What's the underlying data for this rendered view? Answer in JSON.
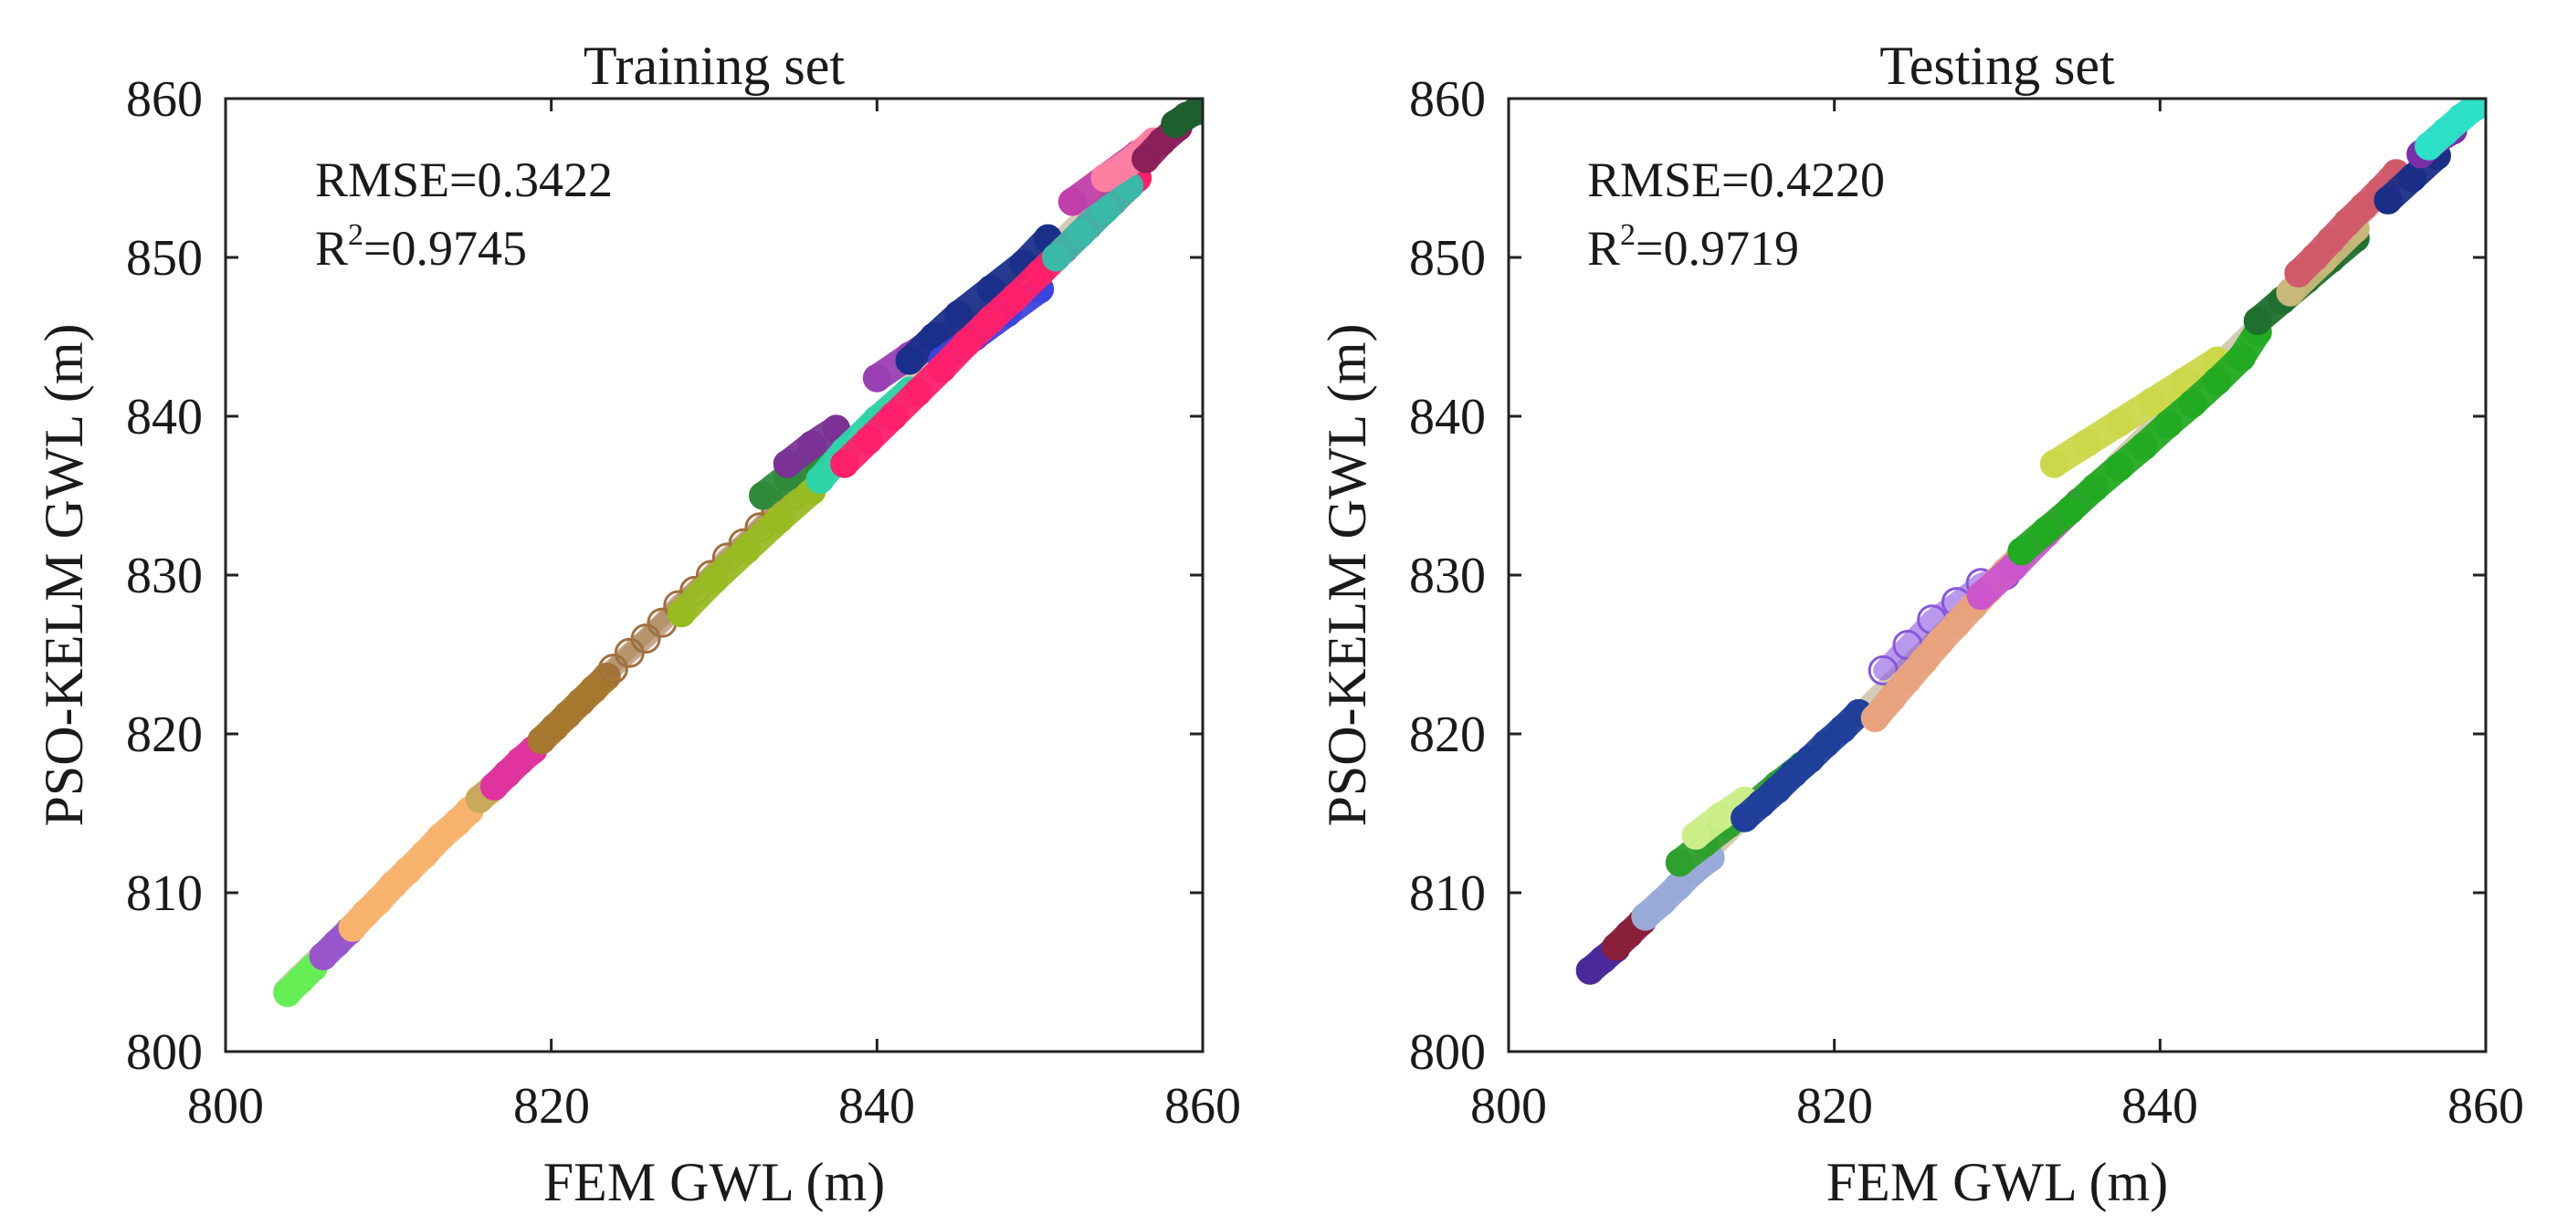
{
  "chart_data": [
    {
      "type": "scatter",
      "title": "Training set",
      "xlabel": "FEM GWL (m)",
      "ylabel": "PSO-KELM GWL (m)",
      "xlim": [
        800,
        860
      ],
      "ylim": [
        800,
        860
      ],
      "xticks": [
        "800",
        "820",
        "840",
        "860"
      ],
      "yticks": [
        "800",
        "810",
        "820",
        "830",
        "840",
        "850",
        "860"
      ],
      "metrics": {
        "rmse": "RMSE=0.3422",
        "r_base": "R",
        "r_sup": "2",
        "r_value": "=0.9745"
      },
      "series": [
        {
          "name": "g1",
          "color": "#66ee55",
          "x": [
            803.8,
            804.6,
            805.4
          ],
          "y": [
            803.7,
            804.5,
            805.3
          ],
          "filled": true
        },
        {
          "name": "g2",
          "color": "#9955cc",
          "x": [
            806.0,
            806.8,
            807.6
          ],
          "y": [
            806.0,
            806.8,
            807.6
          ],
          "filled": true
        },
        {
          "name": "g3",
          "color": "#f7b36b",
          "x": [
            807.8,
            808.6,
            809.4,
            810.3,
            811.2,
            812.2,
            813.2,
            814.2,
            815.0
          ],
          "y": [
            807.8,
            808.7,
            809.5,
            810.5,
            811.4,
            812.4,
            813.5,
            814.4,
            815.2
          ],
          "filled": true
        },
        {
          "name": "g4",
          "color": "#c9a95e",
          "x": [
            815.6,
            816.4
          ],
          "y": [
            815.9,
            816.6
          ],
          "filled": true
        },
        {
          "name": "g5",
          "color": "#e0339e",
          "x": [
            816.5,
            817.3,
            818.1,
            818.9
          ],
          "y": [
            816.7,
            817.5,
            818.3,
            819.0
          ],
          "filled": true
        },
        {
          "name": "g6",
          "color": "#a6782f",
          "x": [
            819.4,
            820.2,
            821.0,
            821.8,
            822.6,
            823.4
          ],
          "y": [
            819.6,
            820.4,
            821.2,
            822.0,
            822.8,
            823.6
          ],
          "filled": true
        },
        {
          "name": "g7",
          "color": "#a07040",
          "x": [
            823.8,
            824.8,
            825.8,
            826.8,
            827.8,
            828.8,
            829.8,
            830.8,
            831.8,
            832.8,
            833.8,
            834.8,
            835.8,
            836.8
          ],
          "y": [
            824.1,
            825.1,
            826.0,
            827.0,
            828.1,
            829.0,
            830.0,
            831.1,
            832.0,
            833.0,
            834.0,
            835.0,
            836.0,
            836.9
          ],
          "filled": false
        },
        {
          "name": "g8",
          "color": "#99bb22",
          "x": [
            828.0,
            830.0,
            832.0,
            834.0,
            836.0
          ],
          "y": [
            827.6,
            829.7,
            831.6,
            833.5,
            835.3
          ],
          "filled": true
        },
        {
          "name": "g9",
          "color": "#2e8b3a",
          "x": [
            833.0,
            834.5,
            836.0
          ],
          "y": [
            835.0,
            836.2,
            837.5
          ],
          "filled": true
        },
        {
          "name": "g10",
          "color": "#7b3294",
          "x": [
            834.5,
            836.0,
            837.5
          ],
          "y": [
            837.0,
            838.2,
            839.2
          ],
          "filled": true
        },
        {
          "name": "g11",
          "color": "#2dd4a8",
          "x": [
            836.5,
            838.0,
            840.0,
            842.0
          ],
          "y": [
            836.0,
            837.8,
            839.8,
            841.6
          ],
          "filled": true
        },
        {
          "name": "g12",
          "color": "#9b3fb5",
          "x": [
            840.0,
            842.0,
            844.0
          ],
          "y": [
            842.4,
            843.8,
            845.1
          ],
          "filled": true
        },
        {
          "name": "g13",
          "color": "#1a2f8a",
          "x": [
            842.0,
            843.5,
            845.0,
            847.0,
            849.0,
            850.5
          ],
          "y": [
            843.5,
            845.0,
            846.4,
            848.0,
            849.6,
            851.2
          ],
          "filled": true
        },
        {
          "name": "g14",
          "color": "#3b44dd",
          "x": [
            844.0,
            846.0,
            848.0,
            850.0
          ],
          "y": [
            843.5,
            845.0,
            846.5,
            848.0
          ],
          "filled": true
        },
        {
          "name": "g15",
          "color": "#ff1f6b",
          "x": [
            838.0,
            839.5,
            841.0,
            842.5,
            844.0,
            845.5,
            847.0,
            848.5,
            850.0,
            851.5,
            853.0,
            854.5,
            856.0
          ],
          "y": [
            837.0,
            838.5,
            840.0,
            841.5,
            843.0,
            844.6,
            846.1,
            847.5,
            849.0,
            850.5,
            852.0,
            853.5,
            855.0
          ],
          "filled": true
        },
        {
          "name": "g16",
          "color": "#3ab8a8",
          "x": [
            851.0,
            852.5,
            854.0,
            855.5
          ],
          "y": [
            850.0,
            851.5,
            853.0,
            854.5
          ],
          "filled": true
        },
        {
          "name": "g17",
          "color": "#c03fa8",
          "x": [
            852.0,
            854.0,
            856.0
          ],
          "y": [
            853.5,
            855.0,
            856.5
          ],
          "filled": true
        },
        {
          "name": "g18",
          "color": "#ff7fa3",
          "x": [
            854.0,
            855.5,
            857.0
          ],
          "y": [
            855.0,
            856.0,
            857.3
          ],
          "filled": true
        },
        {
          "name": "g19",
          "color": "#8a1f5a",
          "x": [
            856.5,
            857.5,
            858.5
          ],
          "y": [
            856.2,
            857.3,
            858.2
          ],
          "filled": true
        },
        {
          "name": "g20",
          "color": "#1f5e2e",
          "x": [
            858.3,
            859.0,
            859.6
          ],
          "y": [
            858.4,
            858.9,
            859.2
          ],
          "filled": true
        }
      ]
    },
    {
      "type": "scatter",
      "title": "Testing set",
      "xlabel": "FEM GWL (m)",
      "ylabel": "PSO-KELM GWL (m)",
      "xlim": [
        800,
        860
      ],
      "ylim": [
        800,
        860
      ],
      "xticks": [
        "800",
        "820",
        "840",
        "860"
      ],
      "yticks": [
        "800",
        "810",
        "820",
        "830",
        "840",
        "850",
        "860"
      ],
      "metrics": {
        "rmse": "RMSE=0.4220",
        "r_base": "R",
        "r_sup": "2",
        "r_value": "=0.9719"
      },
      "series": [
        {
          "name": "t1",
          "color": "#4a2a9a",
          "x": [
            805.0,
            805.8,
            806.6
          ],
          "y": [
            805.1,
            805.8,
            806.5
          ],
          "filled": true
        },
        {
          "name": "t2",
          "color": "#8a1f3a",
          "x": [
            806.6,
            807.4,
            808.2
          ],
          "y": [
            806.6,
            807.4,
            808.2
          ],
          "filled": true
        },
        {
          "name": "t3",
          "color": "#9aaad8",
          "x": [
            808.4,
            809.4,
            810.4,
            811.4,
            812.4
          ],
          "y": [
            808.5,
            809.4,
            810.4,
            811.4,
            812.2
          ],
          "filled": true
        },
        {
          "name": "t4",
          "color": "#2ea02e",
          "x": [
            810.5,
            812.0,
            813.5,
            815.0,
            816.5,
            818.0
          ],
          "y": [
            811.9,
            813.1,
            814.3,
            815.5,
            816.8,
            818.0
          ],
          "filled": true
        },
        {
          "name": "t5",
          "color": "#ccee88",
          "x": [
            811.5,
            813.0,
            814.5
          ],
          "y": [
            813.6,
            814.8,
            815.8
          ],
          "filled": true
        },
        {
          "name": "t6",
          "color": "#1f3f9a",
          "x": [
            814.5,
            815.5,
            816.5,
            817.5,
            818.5,
            819.5,
            820.5,
            821.5
          ],
          "y": [
            814.7,
            815.6,
            816.5,
            817.5,
            818.4,
            819.4,
            820.3,
            821.3
          ],
          "filled": true
        },
        {
          "name": "t7",
          "color": "#8855dd",
          "x": [
            823.0,
            824.5,
            826.0,
            827.5,
            829.0,
            830.5
          ],
          "y": [
            824.0,
            825.6,
            827.2,
            828.3,
            829.5,
            830.0
          ],
          "filled": false
        },
        {
          "name": "t8",
          "color": "#e8a37e",
          "x": [
            822.5,
            823.5,
            824.5,
            825.5,
            826.5,
            827.5,
            828.5,
            829.5,
            830.5,
            831.5
          ],
          "y": [
            821.0,
            822.2,
            823.4,
            824.6,
            825.8,
            826.9,
            828.0,
            829.1,
            830.2,
            831.2
          ],
          "filled": true
        },
        {
          "name": "t9",
          "color": "#cc55cc",
          "x": [
            829.0,
            831.0,
            833.0,
            835.0
          ],
          "y": [
            828.7,
            830.5,
            832.6,
            834.6
          ],
          "filled": true
        },
        {
          "name": "t10",
          "color": "#ccd84a",
          "x": [
            833.5,
            835.5,
            837.5,
            839.5,
            841.5,
            843.5
          ],
          "y": [
            837.0,
            838.3,
            839.6,
            840.9,
            842.2,
            843.5
          ],
          "filled": true
        },
        {
          "name": "t11",
          "color": "#22aa22",
          "x": [
            831.5,
            833.0,
            834.5,
            836.0,
            837.5,
            839.0,
            840.5,
            842.0,
            843.5,
            845.0,
            846.0
          ],
          "y": [
            831.5,
            832.8,
            834.1,
            835.5,
            836.8,
            838.1,
            839.5,
            840.8,
            842.2,
            843.7,
            845.3
          ],
          "filled": true
        },
        {
          "name": "t12",
          "color": "#1f6f2f",
          "x": [
            846.0,
            847.5,
            849.0,
            850.5,
            852.0
          ],
          "y": [
            846.0,
            847.3,
            848.6,
            849.9,
            851.2
          ],
          "filled": true
        },
        {
          "name": "t13",
          "color": "#c8b87a",
          "x": [
            848.0,
            850.0,
            852.0
          ],
          "y": [
            847.8,
            849.8,
            851.8
          ],
          "filled": true
        },
        {
          "name": "t14",
          "color": "#d05a6a",
          "x": [
            848.5,
            849.5,
            850.5,
            851.5,
            852.5,
            853.5,
            854.5
          ],
          "y": [
            849.0,
            850.0,
            851.1,
            852.2,
            853.2,
            854.2,
            855.3
          ],
          "filled": true
        },
        {
          "name": "t15",
          "color": "#1a2e88",
          "x": [
            854.0,
            855.5,
            857.0
          ],
          "y": [
            853.6,
            855.0,
            856.4
          ],
          "filled": true
        },
        {
          "name": "t16",
          "color": "#7a2fa8",
          "x": [
            856.0,
            857.0,
            858.0
          ],
          "y": [
            856.5,
            857.4,
            858.0
          ],
          "filled": true
        },
        {
          "name": "t17",
          "color": "#2de0c8",
          "x": [
            856.5,
            857.5,
            858.5,
            859.4
          ],
          "y": [
            857.0,
            857.9,
            858.8,
            859.5
          ],
          "filled": true
        }
      ]
    }
  ]
}
